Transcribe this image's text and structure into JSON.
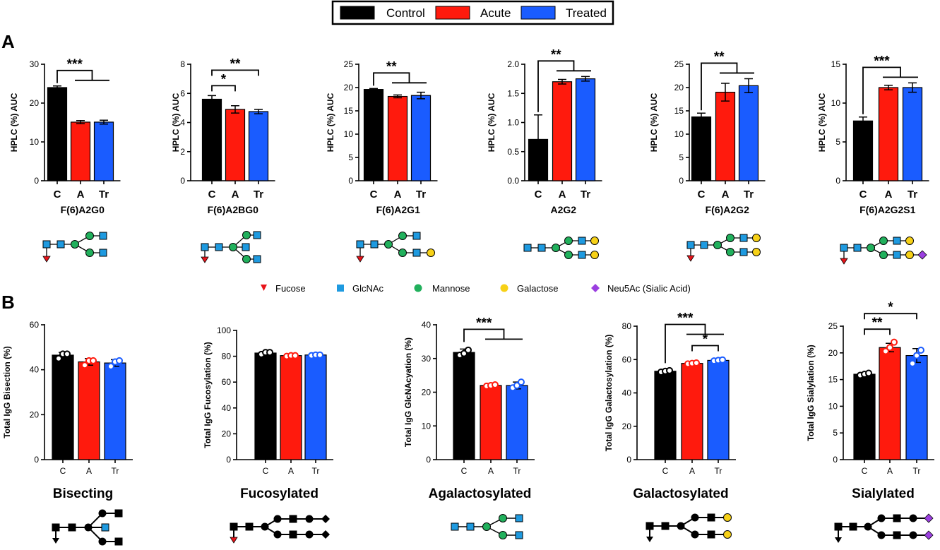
{
  "legend": [
    {
      "label": "Control",
      "color": "#000000"
    },
    {
      "label": "Acute",
      "color": "#ff1a0d"
    },
    {
      "label": "Treated",
      "color": "#1a5cff"
    }
  ],
  "panels": {
    "a": "A",
    "b": "B"
  },
  "glycan_legend": [
    {
      "label": "Fucose",
      "shape": "triangle-icon",
      "color": "#e8141a"
    },
    {
      "label": "GlcNAc",
      "shape": "square-icon",
      "color": "#1e9ae0"
    },
    {
      "label": "Mannose",
      "shape": "circle-icon",
      "color": "#21b05c"
    },
    {
      "label": "Galactose",
      "shape": "circle-icon",
      "color": "#f7d117"
    },
    {
      "label": "Neu5Ac (Sialic Acid)",
      "shape": "diamond-icon",
      "color": "#9b3fe0"
    }
  ],
  "chart_data": [
    {
      "type": "bar",
      "panel": "A",
      "title": "F(6)A2G0",
      "ylabel": "HPLC (%) AUC",
      "categories": [
        "C",
        "A",
        "Tr"
      ],
      "values": [
        24,
        15.1,
        15.1
      ],
      "errors": [
        0.4,
        0.4,
        0.5
      ],
      "ylim": [
        0,
        30
      ],
      "yticks": [
        0,
        10,
        20,
        30
      ],
      "significance": [
        {
          "label": "***",
          "type": "oneVsRest"
        }
      ]
    },
    {
      "type": "bar",
      "panel": "A",
      "title": "F(6)A2BG0",
      "ylabel": "HPLC (%) AUC",
      "categories": [
        "C",
        "A",
        "Tr"
      ],
      "values": [
        5.6,
        4.9,
        4.75
      ],
      "errors": [
        0.25,
        0.25,
        0.15
      ],
      "ylim": [
        0,
        8
      ],
      "yticks": [
        0,
        2,
        4,
        6,
        8
      ],
      "significance": [
        {
          "label": "*",
          "type": "pair",
          "from": 0,
          "to": 1
        },
        {
          "label": "**",
          "type": "pair",
          "from": 0,
          "to": 2
        }
      ]
    },
    {
      "type": "bar",
      "panel": "A",
      "title": "F(6)A2G1",
      "ylabel": "HPLC (%) AUC",
      "categories": [
        "C",
        "A",
        "Tr"
      ],
      "values": [
        19.6,
        18.1,
        18.3
      ],
      "errors": [
        0.2,
        0.3,
        0.7
      ],
      "ylim": [
        0,
        25
      ],
      "yticks": [
        0,
        5,
        10,
        15,
        20,
        25
      ],
      "significance": [
        {
          "label": "**",
          "type": "oneVsRest"
        }
      ]
    },
    {
      "type": "bar",
      "panel": "A",
      "title": "A2G2",
      "ylabel": "HPLC (%) AUC",
      "categories": [
        "C",
        "A",
        "Tr"
      ],
      "values": [
        0.71,
        1.7,
        1.75
      ],
      "errors": [
        0.42,
        0.04,
        0.04
      ],
      "ylim": [
        0,
        2
      ],
      "yticks": [
        0.0,
        0.5,
        1.0,
        1.5,
        2.0
      ],
      "ytick_labels": [
        "0.0",
        "0.5",
        "1.0",
        "1.5",
        "2.0"
      ],
      "significance": [
        {
          "label": "**",
          "type": "oneVsRest"
        }
      ]
    },
    {
      "type": "bar",
      "panel": "A",
      "title": "F(6)A2G2",
      "ylabel": "HPLC (%) AUC",
      "categories": [
        "C",
        "A",
        "Tr"
      ],
      "values": [
        13.7,
        19,
        20.4
      ],
      "errors": [
        0.8,
        1.9,
        1.5
      ],
      "ylim": [
        0,
        25
      ],
      "yticks": [
        0,
        5,
        10,
        15,
        20,
        25
      ],
      "significance": [
        {
          "label": "**",
          "type": "oneVsRest"
        }
      ]
    },
    {
      "type": "bar",
      "panel": "A",
      "title": "F(6)A2G2S1",
      "ylabel": "HPLC (%) AUC",
      "categories": [
        "C",
        "A",
        "Tr"
      ],
      "values": [
        7.7,
        12,
        12
      ],
      "errors": [
        0.5,
        0.3,
        0.6
      ],
      "ylim": [
        0,
        15
      ],
      "yticks": [
        0,
        5,
        10,
        15
      ],
      "significance": [
        {
          "label": "***",
          "type": "oneVsRest"
        }
      ]
    },
    {
      "type": "bar",
      "panel": "B",
      "title": "Bisecting",
      "ylabel": "Total IgG Bisection (%)",
      "categories": [
        "C",
        "A",
        "Tr"
      ],
      "values": [
        46.5,
        43.5,
        43
      ],
      "errors": [
        1.2,
        1.5,
        1.5
      ],
      "points": [
        [
          45,
          47,
          47
        ],
        [
          42,
          44,
          44
        ],
        [
          41.5,
          43.5,
          44
        ]
      ],
      "ylim": [
        0,
        60
      ],
      "yticks": [
        0,
        20,
        40,
        60
      ],
      "significance": []
    },
    {
      "type": "bar",
      "panel": "B",
      "title": "Fucosylated",
      "ylabel": "Total IgG Fucosylation (%)",
      "categories": [
        "C",
        "A",
        "Tr"
      ],
      "values": [
        82.5,
        80.5,
        81
      ],
      "errors": [
        1,
        0.8,
        0.6
      ],
      "points": [
        [
          81.5,
          83,
          83
        ],
        [
          80,
          80.5,
          80.5
        ],
        [
          80.5,
          81,
          81
        ]
      ],
      "ylim": [
        0,
        100
      ],
      "yticks": [
        0,
        20,
        40,
        60,
        80,
        100
      ],
      "significance": []
    },
    {
      "type": "bar",
      "panel": "B",
      "title": "Agalactosylated",
      "ylabel": "Total IgG GlcNAcyation (%)",
      "categories": [
        "C",
        "A",
        "Tr"
      ],
      "values": [
        31.8,
        22,
        22
      ],
      "errors": [
        1,
        0.3,
        1
      ],
      "points": [
        [
          31,
          31.5,
          32.5
        ],
        [
          21.8,
          22,
          22.2
        ],
        [
          21.3,
          22,
          23
        ]
      ],
      "ylim": [
        0,
        40
      ],
      "yticks": [
        0,
        10,
        20,
        30,
        40
      ],
      "significance": [
        {
          "label": "***",
          "type": "oneVsRest"
        }
      ]
    },
    {
      "type": "bar",
      "panel": "B",
      "title": "Galactosylated",
      "ylabel": "Total IgG Galactosylation (%)",
      "categories": [
        "C",
        "A",
        "Tr"
      ],
      "values": [
        53,
        57.7,
        59.5
      ],
      "errors": [
        0.6,
        0.5,
        0.4
      ],
      "points": [
        [
          52.5,
          53,
          53.4
        ],
        [
          57.4,
          57.7,
          58
        ],
        [
          59.2,
          59.5,
          59.8
        ]
      ],
      "ylim": [
        0,
        80
      ],
      "yticks": [
        0,
        20,
        40,
        60,
        80
      ],
      "significance": [
        {
          "label": "***",
          "type": "oneVsRest"
        },
        {
          "label": "*",
          "type": "pair",
          "from": 1,
          "to": 2
        }
      ]
    },
    {
      "type": "bar",
      "panel": "B",
      "title": "Sialylated",
      "ylabel": "Total IgG Sialylation (%)",
      "categories": [
        "C",
        "A",
        "Tr"
      ],
      "values": [
        16,
        21,
        19.5
      ],
      "errors": [
        0.2,
        0.8,
        1.3
      ],
      "points": [
        [
          15.8,
          16,
          16.2
        ],
        [
          20.3,
          21,
          22
        ],
        [
          18,
          19.5,
          20.5
        ]
      ],
      "ylim": [
        0,
        25
      ],
      "yticks": [
        0,
        5,
        10,
        15,
        20,
        25
      ],
      "significance": [
        {
          "label": "**",
          "type": "pair",
          "from": 0,
          "to": 1
        },
        {
          "label": "*",
          "type": "pair",
          "from": 0,
          "to": 2
        }
      ]
    }
  ]
}
